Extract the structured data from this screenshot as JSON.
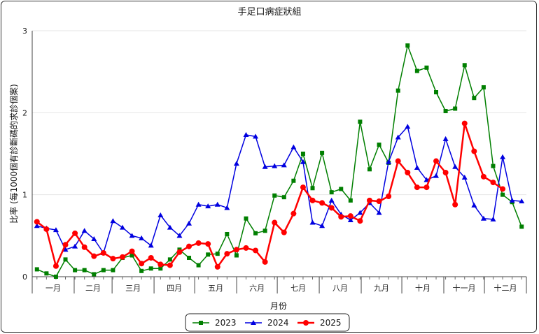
{
  "chart_data": {
    "type": "line",
    "title": "手足口病症狀組",
    "xlabel": "月份",
    "ylabel": "比率 (每1000個有診斷碼的求診個案)",
    "ylim": [
      0,
      3
    ],
    "yticks": [
      "0",
      "1",
      "2",
      "3"
    ],
    "months": [
      "一月",
      "二月",
      "三月",
      "四月",
      "五月",
      "六月",
      "七月",
      "八月",
      "九月",
      "十月",
      "十一月",
      "十二月"
    ],
    "weeks_per_year": 52,
    "legend_position": "bottom",
    "grid": true,
    "series": [
      {
        "name": "2023",
        "color": "#007f00",
        "marker": "square",
        "week_start": 1,
        "values": [
          0.09,
          0.04,
          0.0,
          0.21,
          0.08,
          0.08,
          0.03,
          0.08,
          0.08,
          0.23,
          0.26,
          0.07,
          0.1,
          0.1,
          0.21,
          0.33,
          0.23,
          0.14,
          0.27,
          0.28,
          0.52,
          0.26,
          0.71,
          0.53,
          0.56,
          0.99,
          0.97,
          1.17,
          1.5,
          1.08,
          1.51,
          1.03,
          1.07,
          0.93,
          1.89,
          1.31,
          1.61,
          1.39,
          2.27,
          2.82,
          2.51,
          2.55,
          2.25,
          2.02,
          2.05,
          2.58,
          2.18,
          2.31,
          1.35,
          1.0,
          0.91,
          0.61
        ]
      },
      {
        "name": "2024",
        "color": "#0000e0",
        "marker": "triangle",
        "week_start": 1,
        "values": [
          0.62,
          0.59,
          0.57,
          0.33,
          0.37,
          0.56,
          0.46,
          0.29,
          0.68,
          0.6,
          0.5,
          0.47,
          0.38,
          0.75,
          0.6,
          0.5,
          0.65,
          0.88,
          0.86,
          0.88,
          0.84,
          1.38,
          1.73,
          1.71,
          1.34,
          1.35,
          1.36,
          1.58,
          1.4,
          0.66,
          0.62,
          0.93,
          0.76,
          0.69,
          0.78,
          0.9,
          0.78,
          1.4,
          1.7,
          1.83,
          1.33,
          1.18,
          1.23,
          1.68,
          1.34,
          1.21,
          0.87,
          0.71,
          0.7,
          1.46,
          0.93,
          0.92
        ]
      },
      {
        "name": "2025",
        "color": "#ff0000",
        "marker": "circle",
        "week_start": 1,
        "values": [
          0.67,
          0.58,
          0.13,
          0.39,
          0.53,
          0.36,
          0.25,
          0.29,
          0.22,
          0.24,
          0.31,
          0.16,
          0.23,
          0.15,
          0.14,
          0.3,
          0.37,
          0.41,
          0.4,
          0.12,
          0.28,
          0.33,
          0.35,
          0.32,
          0.18,
          0.66,
          0.54,
          0.77,
          1.09,
          0.93,
          0.9,
          0.84,
          0.73,
          0.74,
          0.68,
          0.93,
          0.92,
          0.98,
          1.41,
          1.27,
          1.09,
          1.09,
          1.41,
          1.27,
          0.88,
          1.87,
          1.53,
          1.22,
          1.15,
          1.07
        ]
      }
    ]
  }
}
